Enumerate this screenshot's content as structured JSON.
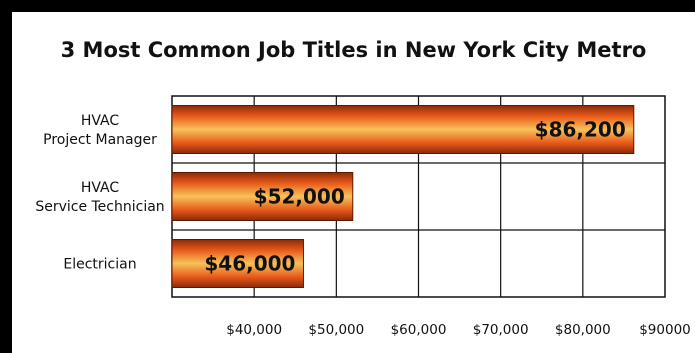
{
  "chart_data": {
    "type": "bar",
    "orientation": "horizontal",
    "title": "3 Most Common Job Titles in New York City Metro",
    "categories": [
      [
        "HVAC",
        "Project Manager"
      ],
      [
        "HVAC",
        "Service Technician"
      ],
      [
        "Electrician"
      ]
    ],
    "values": [
      86200,
      52000,
      46000
    ],
    "value_labels": [
      "$86,200",
      "$52,000",
      "$46,000"
    ],
    "xlim": [
      30000,
      90000
    ],
    "x_ticks": [
      40000,
      50000,
      60000,
      70000,
      80000,
      90000
    ],
    "x_tick_labels": [
      "$40,000",
      "$50,000",
      "$60,000",
      "$70,000",
      "$80,000",
      "$90000"
    ],
    "grid": true,
    "bar_colors": {
      "edge": "#8c2a08",
      "center": "#f7c25a",
      "mid": "#e8591a"
    }
  }
}
